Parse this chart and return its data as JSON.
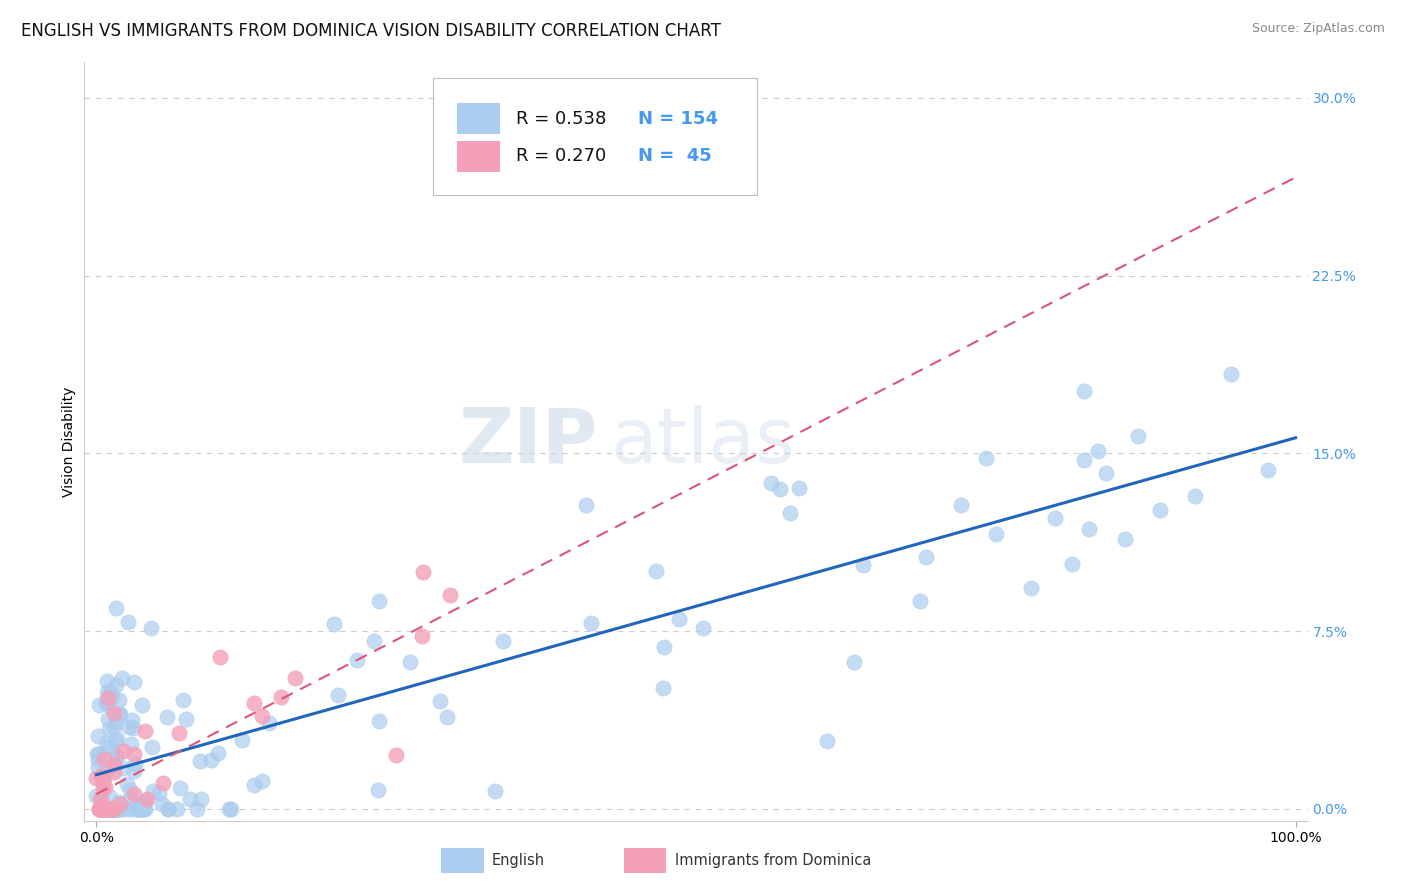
{
  "title": "ENGLISH VS IMMIGRANTS FROM DOMINICA VISION DISABILITY CORRELATION CHART",
  "source": "Source: ZipAtlas.com",
  "ylabel": "Vision Disability",
  "ytick_values": [
    0.0,
    7.5,
    15.0,
    22.5,
    30.0
  ],
  "legend_labels": [
    "English",
    "Immigrants from Dominica"
  ],
  "r_english": 0.538,
  "n_english": 154,
  "r_dominica": 0.27,
  "n_dominica": 45,
  "english_color": "#aaccee",
  "dominica_color": "#f4a0b8",
  "english_line_color": "#2266bb",
  "dominica_line_color": "#dd5577",
  "background_color": "#ffffff",
  "grid_color": "#cccccc",
  "watermark_zip": "ZIP",
  "watermark_atlas": "atlas",
  "title_fontsize": 12,
  "axis_fontsize": 10,
  "legend_fontsize": 12
}
